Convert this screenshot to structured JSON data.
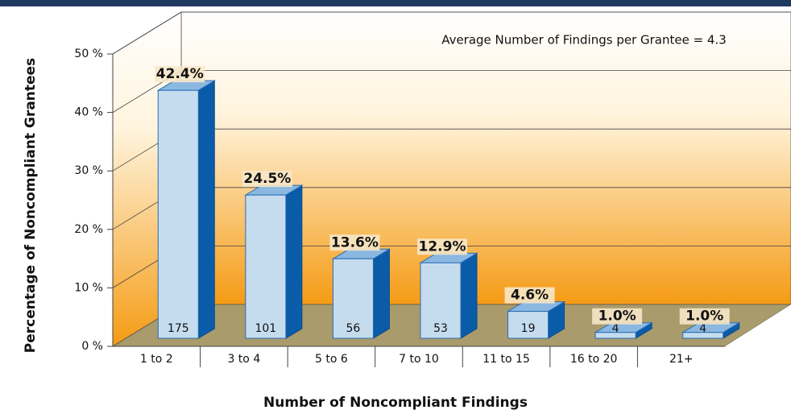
{
  "chart_data": {
    "type": "bar3d",
    "annotation": "Average Number of Findings per Grantee = 4.3",
    "x_label": "Number of Noncompliant Findings",
    "y_label": "Percentage of Noncompliant Grantees",
    "categories": [
      "1 to 2",
      "3 to 4",
      "5 to 6",
      "7 to 10",
      "11 to 15",
      "16 to 20",
      "21+"
    ],
    "values": [
      42.4,
      24.5,
      13.6,
      12.9,
      4.6,
      1.0,
      1.0
    ],
    "value_labels": [
      "42.4%",
      "24.5%",
      "13.6%",
      "12.9%",
      "4.6%",
      "1.0%",
      "1.0%"
    ],
    "counts": [
      175,
      101,
      56,
      53,
      19,
      4,
      4
    ],
    "color": "#c5dcef",
    "ylim": [
      0,
      50
    ],
    "yticks": [
      {
        "value": 0,
        "label": "0 %"
      },
      {
        "value": 10,
        "label": "10 %"
      },
      {
        "value": 20,
        "label": "20 %"
      },
      {
        "value": 30,
        "label": "30 %"
      },
      {
        "value": 40,
        "label": "40 %"
      },
      {
        "value": 50,
        "label": "50 %"
      }
    ],
    "grid": true
  }
}
